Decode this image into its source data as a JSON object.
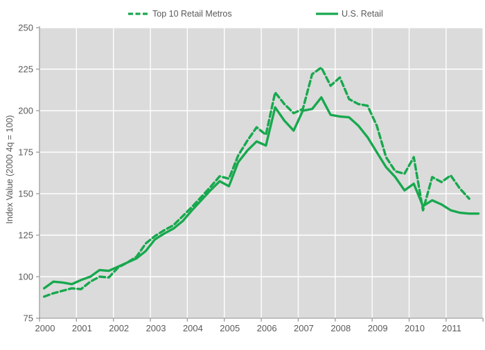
{
  "legend": {
    "items": [
      {
        "label": "Top 10 Retail Metros",
        "style": "dashed"
      },
      {
        "label": "U.S. Retail",
        "style": "solid"
      }
    ]
  },
  "y_axis_title": "Index Value (2000 4q = 100)",
  "colors": {
    "line_green": "#17A84E",
    "text_gray": "#595959",
    "plot_bg": "#DBDBDB",
    "gridline": "#FFFFFF",
    "axis_line": "#9B9B9B"
  },
  "chart_data": {
    "type": "line",
    "title": "",
    "xlabel": "",
    "ylabel": "Index Value (2000 4q = 100)",
    "ylim": [
      75,
      250
    ],
    "yticks": [
      250,
      225,
      200,
      175,
      150,
      125,
      100,
      75
    ],
    "x_categories_years": [
      "2000",
      "2001",
      "2002",
      "2003",
      "2004",
      "2005",
      "2006",
      "2007",
      "2008",
      "2009",
      "2010",
      "2011"
    ],
    "x_frequency": "quarterly",
    "quarters_per_year": 4,
    "n_points": 48,
    "grid": true,
    "legend_position": "top",
    "series": [
      {
        "name": "Top 10 Retail Metros",
        "dash": true,
        "values": [
          88,
          90,
          91.5,
          93,
          92.5,
          97,
          100,
          99.5,
          105.5,
          108.5,
          112,
          120,
          124.5,
          128,
          131,
          136.5,
          142,
          148,
          154,
          160.5,
          159,
          173,
          182,
          190,
          185.5,
          211,
          204,
          198.5,
          201,
          222,
          226,
          215,
          220,
          207,
          204,
          203,
          191,
          172,
          163.5,
          162,
          172,
          140,
          160,
          157,
          161,
          153,
          147,
          null
        ]
      },
      {
        "name": "U.S. Retail",
        "dash": false,
        "values": [
          93,
          97,
          96.5,
          95.5,
          98,
          100,
          104,
          103.5,
          106,
          108.5,
          111,
          115.5,
          122.5,
          126,
          129,
          133.5,
          140,
          146,
          152,
          157.5,
          154.5,
          169,
          176,
          181.5,
          179,
          202,
          194,
          188,
          200,
          201,
          208,
          197.5,
          196.5,
          196,
          191,
          184,
          175,
          166,
          160,
          152,
          156,
          142.5,
          146,
          143.5,
          140,
          138.5,
          138,
          138
        ]
      }
    ]
  }
}
